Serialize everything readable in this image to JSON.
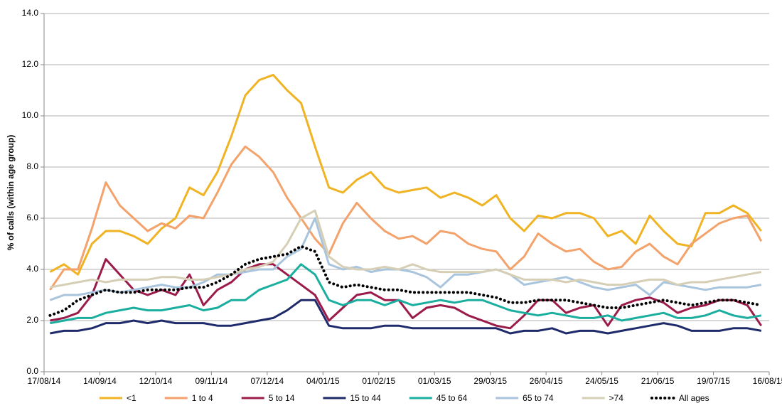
{
  "chart_data": {
    "type": "line",
    "y_label": "% of calls (within age group)",
    "x": [
      "2014-08-20",
      "2014-08-27",
      "2014-09-03",
      "2014-09-10",
      "2014-09-17",
      "2014-09-24",
      "2014-10-01",
      "2014-10-08",
      "2014-10-15",
      "2014-10-22",
      "2014-10-29",
      "2014-11-05",
      "2014-11-12",
      "2014-11-19",
      "2014-11-26",
      "2014-12-03",
      "2014-12-10",
      "2014-12-17",
      "2014-12-24",
      "2014-12-31",
      "2015-01-07",
      "2015-01-14",
      "2015-01-21",
      "2015-01-28",
      "2015-02-04",
      "2015-02-11",
      "2015-02-18",
      "2015-02-25",
      "2015-03-04",
      "2015-03-11",
      "2015-03-18",
      "2015-03-25",
      "2015-04-01",
      "2015-04-08",
      "2015-04-15",
      "2015-04-22",
      "2015-04-29",
      "2015-05-06",
      "2015-05-13",
      "2015-05-20",
      "2015-05-27",
      "2015-06-03",
      "2015-06-10",
      "2015-06-17",
      "2015-06-24",
      "2015-07-01",
      "2015-07-08",
      "2015-07-15",
      "2015-07-22",
      "2015-07-29",
      "2015-08-05",
      "2015-08-12"
    ],
    "xlim": [
      "2014-08-17",
      "2015-08-16"
    ],
    "xticks": [
      {
        "value": "2014-08-17",
        "label": "17/08/14"
      },
      {
        "value": "2014-09-14",
        "label": "14/09/14"
      },
      {
        "value": "2014-10-12",
        "label": "12/10/14"
      },
      {
        "value": "2014-11-09",
        "label": "09/11/14"
      },
      {
        "value": "2014-12-07",
        "label": "07/12/14"
      },
      {
        "value": "2015-01-04",
        "label": "04/01/15"
      },
      {
        "value": "2015-02-01",
        "label": "01/02/15"
      },
      {
        "value": "2015-03-01",
        "label": "01/03/15"
      },
      {
        "value": "2015-03-29",
        "label": "29/03/15"
      },
      {
        "value": "2015-04-26",
        "label": "26/04/15"
      },
      {
        "value": "2015-05-24",
        "label": "24/05/15"
      },
      {
        "value": "2015-06-21",
        "label": "21/06/15"
      },
      {
        "value": "2015-07-19",
        "label": "19/07/15"
      },
      {
        "value": "2015-08-16",
        "label": "16/08/15"
      }
    ],
    "ylim": [
      0,
      14
    ],
    "yticks": [
      {
        "value": 0,
        "label": "0.0"
      },
      {
        "value": 2,
        "label": "2.0"
      },
      {
        "value": 4,
        "label": "4.0"
      },
      {
        "value": 6,
        "label": "6.0"
      },
      {
        "value": 8,
        "label": "8.0"
      },
      {
        "value": 10,
        "label": "10.0"
      },
      {
        "value": 12,
        "label": "12.0"
      },
      {
        "value": 14,
        "label": "14.0"
      }
    ],
    "grid": true,
    "legend": "bottom",
    "series": [
      {
        "name": "<1",
        "color": "#f0b323",
        "values": [
          3.9,
          4.2,
          3.8,
          5.0,
          5.5,
          5.5,
          5.3,
          5.0,
          5.6,
          6.0,
          7.2,
          6.9,
          7.8,
          9.2,
          10.8,
          11.4,
          11.6,
          11.0,
          10.5,
          8.8,
          7.2,
          7.0,
          7.5,
          7.8,
          7.2,
          7.0,
          7.1,
          7.2,
          6.8,
          7.0,
          6.8,
          6.5,
          6.9,
          6.0,
          5.5,
          6.1,
          6.0,
          6.2,
          6.2,
          6.0,
          5.3,
          5.5,
          5.0,
          6.1,
          5.5,
          5.0,
          4.9,
          6.2,
          6.2,
          6.5,
          6.2,
          5.5
        ]
      },
      {
        "name": "1 to 4",
        "color": "#f4a26b",
        "values": [
          3.2,
          4.0,
          4.0,
          5.6,
          7.4,
          6.5,
          6.0,
          5.5,
          5.8,
          5.6,
          6.1,
          6.0,
          7.0,
          8.1,
          8.8,
          8.4,
          7.8,
          6.8,
          6.0,
          5.2,
          4.6,
          5.8,
          6.6,
          6.0,
          5.5,
          5.2,
          5.3,
          5.0,
          5.5,
          5.4,
          5.0,
          4.8,
          4.7,
          4.0,
          4.5,
          5.4,
          5.0,
          4.7,
          4.8,
          4.3,
          4.0,
          4.1,
          4.7,
          5.0,
          4.5,
          4.2,
          5.0,
          5.4,
          5.8,
          6.0,
          6.1,
          5.1
        ]
      },
      {
        "name": "5 to 14",
        "color": "#9b1b4b",
        "values": [
          2.0,
          2.1,
          2.3,
          3.0,
          4.4,
          3.8,
          3.2,
          3.0,
          3.2,
          3.0,
          3.8,
          2.6,
          3.2,
          3.5,
          4.0,
          4.2,
          4.2,
          3.8,
          3.4,
          3.0,
          2.0,
          2.5,
          3.0,
          3.1,
          2.8,
          2.8,
          2.1,
          2.5,
          2.6,
          2.5,
          2.2,
          2.0,
          1.8,
          1.7,
          2.2,
          2.8,
          2.8,
          2.3,
          2.5,
          2.6,
          1.8,
          2.6,
          2.8,
          2.9,
          2.7,
          2.3,
          2.5,
          2.6,
          2.8,
          2.8,
          2.6,
          1.8
        ]
      },
      {
        "name": "15 to 44",
        "color": "#1f2a6b",
        "values": [
          1.5,
          1.6,
          1.6,
          1.7,
          1.9,
          1.9,
          2.0,
          1.9,
          2.0,
          1.9,
          1.9,
          1.9,
          1.8,
          1.8,
          1.9,
          2.0,
          2.1,
          2.4,
          2.8,
          2.8,
          1.8,
          1.7,
          1.7,
          1.7,
          1.8,
          1.8,
          1.7,
          1.7,
          1.7,
          1.7,
          1.7,
          1.7,
          1.7,
          1.5,
          1.6,
          1.6,
          1.7,
          1.5,
          1.6,
          1.6,
          1.5,
          1.6,
          1.7,
          1.8,
          1.9,
          1.8,
          1.6,
          1.6,
          1.6,
          1.7,
          1.7,
          1.6
        ]
      },
      {
        "name": "45 to 64",
        "color": "#1aae9f",
        "values": [
          1.9,
          2.0,
          2.1,
          2.1,
          2.3,
          2.4,
          2.5,
          2.4,
          2.4,
          2.5,
          2.6,
          2.4,
          2.5,
          2.8,
          2.8,
          3.2,
          3.4,
          3.6,
          4.2,
          3.8,
          2.8,
          2.6,
          2.8,
          2.8,
          2.6,
          2.8,
          2.6,
          2.7,
          2.8,
          2.7,
          2.8,
          2.8,
          2.6,
          2.4,
          2.3,
          2.2,
          2.3,
          2.2,
          2.1,
          2.1,
          2.2,
          2.0,
          2.1,
          2.2,
          2.3,
          2.1,
          2.1,
          2.2,
          2.4,
          2.2,
          2.1,
          2.2
        ]
      },
      {
        "name": "65 to 74",
        "color": "#a9c4dd",
        "values": [
          2.8,
          3.0,
          3.0,
          3.1,
          3.2,
          3.1,
          3.2,
          3.3,
          3.4,
          3.3,
          3.3,
          3.5,
          3.8,
          3.8,
          3.9,
          4.0,
          4.0,
          4.5,
          4.8,
          6.0,
          4.2,
          4.0,
          4.1,
          3.9,
          4.0,
          4.0,
          3.9,
          3.7,
          3.3,
          3.8,
          3.8,
          3.9,
          4.0,
          3.8,
          3.4,
          3.5,
          3.6,
          3.7,
          3.5,
          3.3,
          3.2,
          3.3,
          3.4,
          3.0,
          3.5,
          3.4,
          3.3,
          3.2,
          3.3,
          3.3,
          3.3,
          3.4
        ]
      },
      {
        "name": ">74",
        "color": "#d6cfb6",
        "values": [
          3.3,
          3.4,
          3.5,
          3.6,
          3.5,
          3.6,
          3.6,
          3.6,
          3.7,
          3.7,
          3.6,
          3.6,
          3.7,
          3.8,
          4.0,
          4.1,
          4.3,
          5.0,
          6.0,
          6.3,
          4.5,
          4.1,
          4.0,
          4.0,
          4.1,
          4.0,
          4.2,
          4.0,
          3.9,
          3.9,
          3.9,
          3.9,
          4.0,
          3.8,
          3.6,
          3.6,
          3.6,
          3.5,
          3.6,
          3.5,
          3.4,
          3.4,
          3.5,
          3.6,
          3.6,
          3.4,
          3.5,
          3.5,
          3.6,
          3.7,
          3.8,
          3.9
        ]
      },
      {
        "name": "All ages",
        "color": "#000000",
        "style": "dotted",
        "values": [
          2.2,
          2.4,
          2.8,
          3.0,
          3.2,
          3.1,
          3.1,
          3.2,
          3.2,
          3.2,
          3.3,
          3.3,
          3.5,
          3.8,
          4.2,
          4.4,
          4.5,
          4.6,
          4.9,
          4.7,
          3.5,
          3.3,
          3.4,
          3.3,
          3.2,
          3.2,
          3.1,
          3.1,
          3.1,
          3.1,
          3.1,
          3.0,
          2.9,
          2.7,
          2.7,
          2.8,
          2.8,
          2.8,
          2.7,
          2.6,
          2.5,
          2.5,
          2.6,
          2.7,
          2.8,
          2.7,
          2.6,
          2.7,
          2.8,
          2.8,
          2.7,
          2.6
        ]
      }
    ]
  }
}
